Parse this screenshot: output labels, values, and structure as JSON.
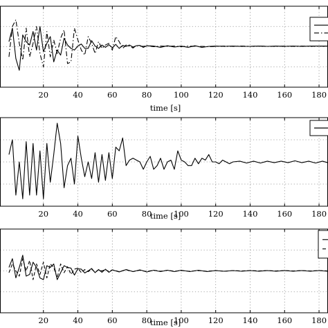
{
  "chart_data": [
    {
      "type": "line",
      "title": "",
      "xlabel": "time [s]",
      "ylabel": "",
      "xlim": [
        -5,
        185
      ],
      "ylim": [
        -1.2,
        1.2
      ],
      "xticks": [
        20,
        40,
        60,
        80,
        100,
        120,
        140,
        160,
        180
      ],
      "xtick_labels": [
        "20",
        "40",
        "60",
        "80",
        "100",
        "120",
        "140",
        "160",
        "180"
      ],
      "grid": true,
      "legend_position": "top-right",
      "series": [
        {
          "style": "solid",
          "x": [
            0,
            2,
            4,
            6,
            8,
            10,
            12,
            14,
            16,
            18,
            20,
            22,
            24,
            26,
            28,
            30,
            32,
            34,
            36,
            38,
            40,
            42,
            44,
            46,
            48,
            50,
            52,
            54,
            56,
            58,
            60,
            62,
            64,
            66,
            68,
            70,
            72,
            74,
            76,
            78,
            80,
            84,
            88,
            92,
            96,
            100,
            104,
            108,
            112,
            116,
            120,
            125,
            130,
            135,
            140,
            145,
            150,
            155,
            160,
            165,
            170,
            175,
            180,
            185
          ],
          "y": [
            0.15,
            0.55,
            -0.35,
            -0.7,
            0.35,
            0.15,
            0.05,
            0.45,
            -0.1,
            0.6,
            -0.15,
            0.1,
            0.3,
            -0.45,
            -0.1,
            -0.25,
            0.25,
            0.05,
            -0.05,
            -0.1,
            0.02,
            0.08,
            -0.05,
            -0.05,
            0.18,
            0.02,
            -0.05,
            0.05,
            -0.02,
            0.06,
            -0.03,
            0.07,
            -0.05,
            0.04,
            0.01,
            0.05,
            -0.01,
            0.03,
            0.04,
            -0.02,
            0.03,
            0.02,
            -0.02,
            0.03,
            -0.01,
            0.02,
            -0.02,
            0.03,
            -0.02,
            0.01,
            0.02,
            0.01,
            0.02,
            0.01,
            0.01,
            0.02,
            0.01,
            0.02,
            0.01,
            0.02,
            0.01,
            0.02,
            0.02,
            0.02
          ]
        },
        {
          "style": "dash-dot",
          "x": [
            0,
            2,
            4,
            6,
            8,
            10,
            12,
            14,
            16,
            18,
            20,
            22,
            24,
            26,
            28,
            30,
            32,
            34,
            36,
            38,
            40,
            42,
            44,
            46,
            48,
            50,
            52,
            54,
            56,
            58,
            60,
            62,
            64,
            66,
            68,
            70,
            72,
            74,
            76,
            78,
            80,
            84,
            88,
            92,
            96,
            100,
            104,
            108,
            112,
            116,
            120,
            125,
            130,
            135,
            140,
            145,
            150,
            155,
            160,
            165,
            170,
            175,
            180,
            185
          ],
          "y": [
            -0.3,
            0.6,
            0.8,
            0.1,
            -0.4,
            0.55,
            -0.3,
            0.1,
            0.6,
            -0.2,
            -0.6,
            0.45,
            -0.3,
            0.2,
            -0.2,
            0.25,
            0.5,
            -0.5,
            -0.45,
            0.55,
            0.2,
            -0.1,
            -0.25,
            0.3,
            0.1,
            -0.2,
            0.15,
            -0.05,
            0.05,
            0.1,
            -0.1,
            0.3,
            0.15,
            -0.05,
            0.05,
            0.02,
            -0.04,
            0.04,
            0.02,
            0.01,
            0.03,
            0.0,
            0.02,
            0.01,
            0.02,
            0.0,
            0.02,
            0.01,
            0.01,
            0.0,
            0.01,
            0.02,
            0.01,
            0.02,
            0.01,
            0.02,
            0.01,
            0.01,
            0.02,
            0.01,
            0.02,
            0.01,
            0.02,
            0.01
          ]
        }
      ]
    },
    {
      "type": "line",
      "title": "",
      "xlabel": "time [s]",
      "ylabel": "",
      "xlim": [
        -5,
        185
      ],
      "ylim": [
        -1.2,
        1.2
      ],
      "xticks": [
        20,
        40,
        60,
        80,
        100,
        120,
        140,
        160,
        180
      ],
      "xtick_labels": [
        "20",
        "40",
        "60",
        "80",
        "100",
        "120",
        "140",
        "160",
        "180"
      ],
      "grid": true,
      "legend_position": "top-right",
      "series": [
        {
          "style": "solid",
          "x": [
            0,
            2,
            4,
            6,
            8,
            10,
            12,
            14,
            16,
            18,
            20,
            22,
            24,
            26,
            28,
            30,
            32,
            34,
            36,
            38,
            40,
            42,
            44,
            46,
            48,
            50,
            52,
            54,
            56,
            58,
            60,
            62,
            64,
            66,
            68,
            70,
            72,
            74,
            76,
            78,
            80,
            82,
            84,
            86,
            88,
            90,
            92,
            94,
            96,
            98,
            100,
            102,
            104,
            106,
            108,
            110,
            112,
            114,
            116,
            118,
            120,
            122,
            124,
            126,
            128,
            130,
            134,
            138,
            142,
            146,
            150,
            154,
            158,
            162,
            166,
            170,
            174,
            178,
            182,
            185
          ],
          "y": [
            0.2,
            0.6,
            -0.9,
            0.0,
            -1.0,
            0.55,
            -0.9,
            0.5,
            -0.9,
            0.3,
            -1.0,
            0.5,
            -0.55,
            0.2,
            1.05,
            0.5,
            -0.7,
            -0.1,
            0.1,
            -0.6,
            0.7,
            0.1,
            -0.4,
            0.0,
            -0.45,
            0.25,
            -0.55,
            0.2,
            -0.5,
            0.25,
            -0.45,
            0.4,
            0.3,
            0.65,
            -0.1,
            0.05,
            0.1,
            0.05,
            0.0,
            -0.2,
            0.0,
            0.15,
            -0.2,
            -0.1,
            0.1,
            -0.2,
            0.0,
            0.05,
            -0.2,
            0.3,
            0.05,
            0.0,
            -0.1,
            -0.1,
            0.1,
            -0.05,
            0.1,
            0.05,
            0.2,
            0.0,
            0.0,
            -0.05,
            0.05,
            0.0,
            -0.05,
            0.0,
            0.02,
            -0.03,
            0.02,
            -0.03,
            0.02,
            -0.02,
            0.02,
            -0.02,
            0.03,
            -0.02,
            0.02,
            -0.03,
            0.02,
            -0.02
          ]
        }
      ]
    },
    {
      "type": "line",
      "title": "",
      "xlabel": "time [s]",
      "ylabel": "",
      "xlim": [
        -5,
        185
      ],
      "ylim": [
        -1.2,
        1.2
      ],
      "xticks": [
        20,
        40,
        60,
        80,
        100,
        120,
        140,
        160,
        180
      ],
      "xtick_labels": [
        "20",
        "40",
        "60",
        "80",
        "100",
        "120",
        "140",
        "160",
        "180"
      ],
      "grid": true,
      "legend_position": "top-right",
      "series": [
        {
          "style": "solid",
          "x": [
            0,
            2,
            4,
            6,
            8,
            10,
            12,
            14,
            16,
            18,
            20,
            22,
            24,
            26,
            28,
            30,
            32,
            34,
            36,
            38,
            40,
            42,
            44,
            46,
            48,
            50,
            52,
            54,
            56,
            58,
            60,
            64,
            68,
            72,
            76,
            80,
            84,
            88,
            92,
            96,
            100,
            105,
            110,
            115,
            120,
            125,
            130,
            135,
            140,
            145,
            150,
            155,
            160,
            165,
            170,
            175,
            180,
            185
          ],
          "y": [
            0.1,
            0.35,
            -0.2,
            0.1,
            0.45,
            -0.15,
            -0.1,
            0.25,
            0.1,
            -0.2,
            -0.25,
            0.15,
            0.1,
            0.2,
            -0.25,
            -0.05,
            0.15,
            0.1,
            0.08,
            -0.12,
            0.06,
            0.05,
            -0.06,
            0.0,
            0.07,
            -0.05,
            0.04,
            -0.04,
            0.05,
            -0.04,
            0.03,
            -0.03,
            0.04,
            -0.02,
            0.03,
            -0.03,
            0.02,
            -0.02,
            0.02,
            -0.02,
            0.02,
            -0.02,
            0.02,
            -0.02,
            0.01,
            -0.01,
            0.01,
            -0.01,
            0.01,
            -0.01,
            0.01,
            -0.01,
            0.01,
            -0.01,
            0.01,
            -0.01,
            0.01,
            -0.01
          ]
        },
        {
          "style": "dashed",
          "x": [
            0,
            2,
            4,
            6,
            8,
            10,
            12,
            14,
            16,
            18,
            20,
            22,
            24,
            26,
            28,
            30,
            32,
            34,
            36,
            38,
            40,
            42,
            44,
            46,
            48,
            50,
            52,
            54,
            56,
            58,
            60,
            64,
            68,
            72,
            76,
            80,
            84,
            88,
            92,
            96,
            100,
            105,
            110,
            115,
            120,
            125,
            130,
            135,
            140,
            145,
            150,
            155,
            160,
            165,
            170,
            175,
            180,
            185
          ],
          "y": [
            -0.05,
            0.2,
            0.0,
            -0.15,
            0.35,
            0.0,
            0.3,
            -0.25,
            0.2,
            -0.1,
            0.25,
            -0.2,
            0.2,
            0.1,
            -0.2,
            0.2,
            -0.05,
            0.12,
            -0.1,
            0.05,
            0.08,
            -0.05,
            0.04,
            -0.02,
            0.05,
            -0.04,
            0.03,
            0.0,
            0.04,
            -0.02,
            0.03,
            -0.02,
            0.03,
            -0.02,
            0.02,
            -0.02,
            0.02,
            -0.01,
            0.02,
            -0.01,
            0.01,
            -0.01,
            0.01,
            -0.01,
            0.01,
            -0.01,
            0.01,
            0.0,
            0.01,
            0.0,
            0.01,
            0.0,
            0.01,
            0.0,
            0.01,
            0.0,
            0.01,
            0.0
          ]
        }
      ]
    }
  ]
}
